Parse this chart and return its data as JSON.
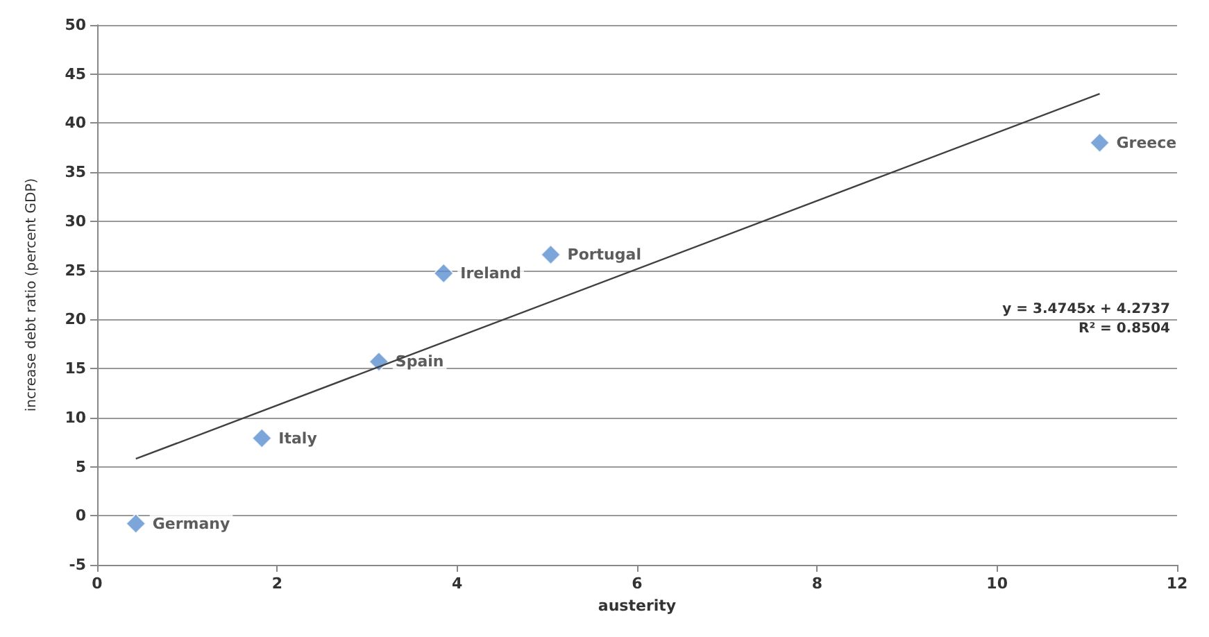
{
  "chart_data": {
    "type": "scatter",
    "xlabel": "austerity",
    "ylabel": "increase debt ratio (percent GDP)",
    "xlim": [
      0,
      12
    ],
    "xticks": [
      0,
      2,
      4,
      6,
      8,
      10,
      12
    ],
    "ylim": [
      -5,
      50
    ],
    "yticks": [
      -5,
      0,
      5,
      10,
      15,
      20,
      25,
      30,
      35,
      40,
      45,
      50
    ],
    "grid": "y",
    "marker": "diamond",
    "series": [
      {
        "color": "#5b8fd0",
        "x": [
          0.43,
          1.83,
          3.13,
          3.85,
          5.04,
          11.14
        ],
        "values": [
          -0.8,
          7.9,
          15.7,
          24.7,
          26.6,
          38.0
        ]
      },
      {
        "type": "line",
        "color": "#404040",
        "marker": "none",
        "x": [
          0.43,
          11.14
        ],
        "values": [
          5.8,
          43.0
        ]
      }
    ],
    "annotations": [
      {
        "text": "Germany",
        "x": 0.43,
        "y": -0.8
      },
      {
        "text": "Italy",
        "x": 1.83,
        "y": 7.9
      },
      {
        "text": "Spain",
        "x": 3.13,
        "y": 15.7
      },
      {
        "text": "Ireland",
        "x": 3.85,
        "y": 24.7
      },
      {
        "text": "Portugal",
        "x": 5.04,
        "y": 26.6
      },
      {
        "text": "Greece",
        "x": 11.14,
        "y": 38.0
      },
      "y = 3.4745x + 4.2737",
      "R² = 0.8504"
    ]
  }
}
